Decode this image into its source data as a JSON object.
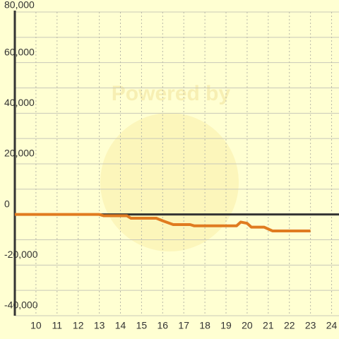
{
  "chart_data": {
    "type": "line",
    "watermark": "Powered by",
    "x": [
      9,
      13,
      13.2,
      14.3,
      14.5,
      15.7,
      16,
      16.5,
      17.3,
      17.5,
      19.5,
      19.7,
      20,
      20.2,
      20.8,
      21.2,
      23
    ],
    "series": [
      {
        "color": "#e07b20",
        "values": [
          0,
          0,
          -500,
          -500,
          -1500,
          -1500,
          -2500,
          -4000,
          -4000,
          -4500,
          -4500,
          -3000,
          -3500,
          -5000,
          -5000,
          -6500,
          -6500
        ]
      }
    ],
    "xlim": [
      9,
      24.35
    ],
    "xticks": [
      10,
      11,
      12,
      13,
      14,
      15,
      16,
      17,
      18,
      19,
      20,
      21,
      22,
      23,
      24
    ],
    "ylim": [
      -40000,
      80000
    ],
    "yticks": [
      {
        "value": -40000,
        "label": "-40,000"
      },
      {
        "value": -20000,
        "label": "-20,000"
      },
      0,
      {
        "value": 20000,
        "label": "20,000"
      },
      {
        "value": 40000,
        "label": "40,000"
      },
      {
        "value": 60000,
        "label": "60,000"
      },
      {
        "value": 80000,
        "label": "80,000"
      }
    ],
    "minor_yticks": [
      -30000,
      -10000,
      10000,
      30000,
      50000,
      70000
    ],
    "grid": true
  }
}
